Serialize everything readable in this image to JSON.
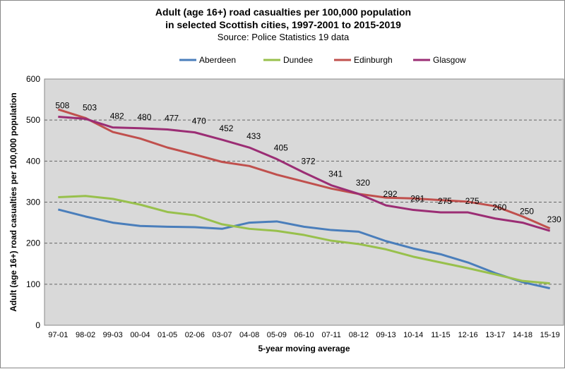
{
  "chart_data": {
    "type": "line",
    "title_line1": "Adult (age 16+) road casualties per 100,000 population",
    "title_line2": "in selected Scottish cities, 1997-2001 to 2015-2019",
    "subtitle": "Source: Police Statistics 19 data",
    "xlabel": "5-year moving average",
    "ylabel": "Adult (age 16+) road casualties per 100,000 population",
    "ylim": [
      0,
      600
    ],
    "yticks": [
      0,
      100,
      200,
      300,
      400,
      500,
      600
    ],
    "grid": true,
    "legend_position": "top",
    "categories": [
      "97-01",
      "98-02",
      "99-03",
      "00-04",
      "01-05",
      "02-06",
      "03-07",
      "04-08",
      "05-09",
      "06-10",
      "07-11",
      "08-12",
      "09-13",
      "10-14",
      "11-15",
      "12-16",
      "13-17",
      "14-18",
      "15-19"
    ],
    "series": [
      {
        "name": "Aberdeen",
        "color": "#4a7ebb",
        "values": [
          282,
          265,
          250,
          242,
          240,
          239,
          235,
          250,
          253,
          240,
          232,
          228,
          205,
          187,
          173,
          153,
          127,
          105,
          90
        ]
      },
      {
        "name": "Dundee",
        "color": "#98c04c",
        "values": [
          312,
          315,
          308,
          294,
          276,
          268,
          246,
          235,
          230,
          220,
          206,
          198,
          185,
          167,
          153,
          139,
          124,
          108,
          102
        ]
      },
      {
        "name": "Edinburgh",
        "color": "#c0504d",
        "values": [
          526,
          505,
          471,
          455,
          433,
          416,
          398,
          388,
          367,
          350,
          333,
          320,
          311,
          309,
          305,
          301,
          290,
          265,
          236
        ]
      },
      {
        "name": "Glasgow",
        "color": "#9b2d74",
        "values": [
          508,
          503,
          482,
          480,
          477,
          470,
          452,
          433,
          405,
          372,
          341,
          320,
          292,
          281,
          275,
          275,
          260,
          250,
          230
        ],
        "data_labels": true
      }
    ]
  }
}
